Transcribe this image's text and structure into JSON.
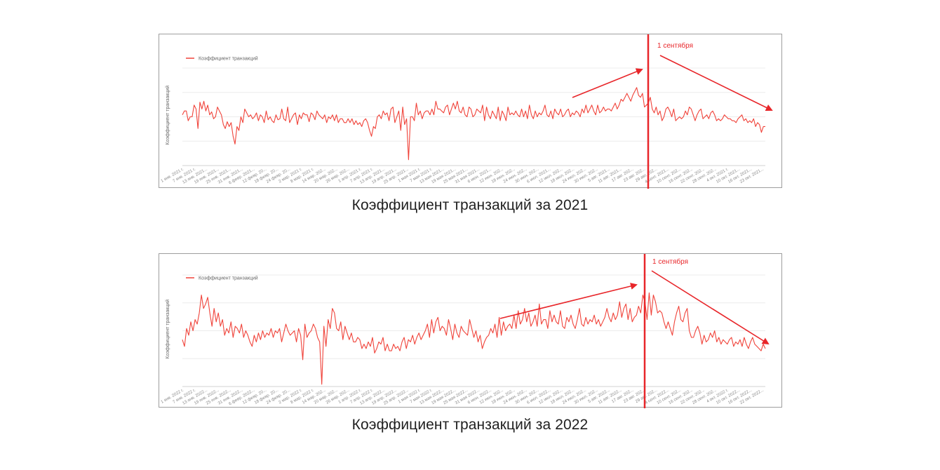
{
  "colors": {
    "series": "#f0433a",
    "annotation": "#e8262a",
    "axis": "#d0d0d0"
  },
  "chart_data": [
    {
      "type": "line",
      "caption": "Коэффициент транзакций за 2021",
      "ylabel": "Коэффициент транзакций",
      "legend": "Коэффициент транзакций",
      "annotation": "1 сентября",
      "grid": true,
      "x_ticks": [
        "1 янв. 2021 г.",
        "7 янв. 2021 г.",
        "13 янв. 2021...",
        "19 янв. 2021...",
        "25 янв. 2021...",
        "31 янв. 2021...",
        "6 февр. 2021...",
        "12 февр. 20...",
        "18 февр. 20...",
        "24 февр. 20...",
        "2 мар. 2021 г.",
        "8 мар. 2021 г.",
        "14 мар. 202...",
        "20 мар. 202...",
        "26 мар. 202...",
        "1 апр. 2021 г.",
        "7 апр. 2021 г.",
        "13 апр. 2021...",
        "19 апр. 2021...",
        "25 апр. 2021...",
        "1 мая 2021 г.",
        "7 мая 2021 г.",
        "13 мая 2021...",
        "19 мая 2021...",
        "25 мая 2021...",
        "31 мая 2021...",
        "6 июн. 2021...",
        "12 июн. 202...",
        "18 июн. 202...",
        "24 июн. 202...",
        "30 июн. 202...",
        "6 июл. 2021...",
        "12 июл. 202...",
        "18 июл. 202...",
        "24 июл. 202...",
        "30 июл. 202...",
        "5 авг. 2021...",
        "11 авг. 2021...",
        "17 авг. 202...",
        "23 авг. 202...",
        "29 авг. 202...",
        "4 сент. 2021...",
        "10 сент. 202...",
        "16 сент. 202...",
        "22 сент. 202...",
        "28 сент. 202...",
        "4 окт. 2021 г.",
        "10 окт. 2021...",
        "16 окт. 2021...",
        "23 окт. 2021..."
      ],
      "values": [
        52,
        56,
        56,
        46,
        50,
        50,
        62,
        58,
        38,
        65,
        58,
        66,
        56,
        62,
        52,
        55,
        48,
        50,
        60,
        56,
        52,
        42,
        38,
        45,
        40,
        44,
        30,
        22,
        40,
        36,
        50,
        44,
        58,
        54,
        50,
        52,
        48,
        50,
        54,
        46,
        52,
        50,
        44,
        56,
        47,
        50,
        46,
        44,
        52,
        47,
        48,
        58,
        48,
        46,
        60,
        44,
        48,
        52,
        54,
        42,
        52,
        48,
        54,
        52,
        52,
        45,
        54,
        52,
        47,
        56,
        52,
        50,
        48,
        52,
        44,
        50,
        48,
        52,
        46,
        52,
        44,
        48,
        48,
        44,
        44,
        48,
        44,
        48,
        42,
        46,
        42,
        44,
        40,
        46,
        48,
        44,
        36,
        30,
        40,
        38,
        50,
        52,
        48,
        56,
        52,
        54,
        46,
        58,
        60,
        44,
        50,
        56,
        36,
        60,
        42,
        48,
        6,
        50,
        50,
        46,
        64,
        52,
        56,
        48,
        54,
        56,
        56,
        52,
        58,
        52,
        66,
        58,
        58,
        56,
        54,
        60,
        62,
        52,
        58,
        64,
        58,
        66,
        56,
        54,
        60,
        52,
        50,
        60,
        58,
        50,
        52,
        58,
        56,
        54,
        62,
        46,
        60,
        52,
        48,
        56,
        52,
        48,
        60,
        46,
        56,
        52,
        46,
        60,
        52,
        54,
        52,
        56,
        52,
        50,
        58,
        50,
        56,
        48,
        62,
        52,
        48,
        56,
        50,
        54,
        52,
        56,
        62,
        52,
        50,
        56,
        48,
        58,
        54,
        52,
        58,
        50,
        52,
        56,
        58,
        50,
        54,
        52,
        56,
        54,
        50,
        58,
        54,
        62,
        54,
        58,
        62,
        56,
        52,
        62,
        54,
        56,
        60,
        56,
        58,
        58,
        56,
        60,
        64,
        58,
        62,
        68,
        66,
        70,
        74,
        70,
        66,
        72,
        76,
        80,
        72,
        70,
        74,
        60,
        62,
        64,
        70,
        58,
        54,
        60,
        52,
        56,
        46,
        50,
        58,
        60,
        56,
        50,
        58,
        46,
        48,
        50,
        48,
        50,
        56,
        52,
        60,
        58,
        52,
        46,
        52,
        56,
        58,
        48,
        50,
        52,
        48,
        54,
        56,
        52,
        46,
        48,
        46,
        48,
        52,
        50,
        48,
        48,
        46,
        46,
        44,
        48,
        50,
        52,
        46,
        48,
        44,
        46,
        44,
        48,
        40,
        44,
        42,
        34,
        40,
        40
      ],
      "xlim": [
        0,
        300
      ],
      "ylim": [
        0,
        100
      ]
    },
    {
      "type": "line",
      "caption": "Коэффициент транзакций за 2022",
      "ylabel": "Коэффициент транзакций",
      "legend": "Коэффициент транзакций",
      "annotation": "1 сентября",
      "grid": true,
      "x_ticks": [
        "1 янв. 2022 г.",
        "7 янв. 2022 г.",
        "13 янв. 2022...",
        "19 янв. 2022...",
        "25 янв. 2022...",
        "31 янв. 2022...",
        "6 февр. 2022...",
        "12 февр. 20...",
        "18 февр. 20...",
        "24 февр. 20...",
        "2 мар. 2022 г.",
        "8 мар. 2022 г.",
        "14 мар. 202...",
        "20 мар. 202...",
        "26 мар. 202...",
        "1 апр. 2022 г.",
        "7 апр. 2022 г.",
        "13 апр. 2022...",
        "19 апр. 2022...",
        "25 апр. 2022...",
        "1 мая 2022 г.",
        "7 мая 2022 г.",
        "13 мая 2022...",
        "19 мая 2022...",
        "25 мая 2022...",
        "31 мая 2022...",
        "6 июн. 2022...",
        "12 июн. 202...",
        "18 июн. 202...",
        "24 июн. 202...",
        "30 июн. 202...",
        "6 июл. 2022...",
        "12 июл. 202...",
        "18 июл. 202...",
        "24 июл. 202...",
        "30 июл. 202...",
        "5 авг. 2022...",
        "11 авг. 2022...",
        "17 авг. 202...",
        "23 авг. 202...",
        "29 авг. 202...",
        "4 сент. 2022...",
        "10 сент. 202...",
        "16 сент. 202...",
        "22 сент. 202...",
        "28 сент. 202...",
        "4 окт. 2022 г.",
        "10 окт. 2022...",
        "16 окт. 2022...",
        "22 окт. 2022..."
      ],
      "values": [
        42,
        36,
        52,
        46,
        58,
        50,
        60,
        56,
        66,
        82,
        70,
        74,
        80,
        66,
        54,
        70,
        58,
        66,
        54,
        60,
        46,
        52,
        48,
        58,
        44,
        54,
        52,
        48,
        56,
        44,
        50,
        46,
        40,
        36,
        46,
        40,
        48,
        42,
        50,
        44,
        48,
        46,
        52,
        44,
        50,
        48,
        52,
        40,
        48,
        56,
        50,
        46,
        48,
        50,
        40,
        52,
        46,
        24,
        56,
        44,
        48,
        50,
        56,
        52,
        44,
        40,
        2,
        54,
        36,
        60,
        52,
        70,
        66,
        52,
        50,
        58,
        42,
        54,
        48,
        42,
        48,
        40,
        40,
        44,
        42,
        34,
        38,
        34,
        40,
        36,
        44,
        30,
        34,
        40,
        38,
        44,
        32,
        38,
        32,
        32,
        38,
        34,
        36,
        32,
        40,
        44,
        34,
        42,
        40,
        46,
        38,
        44,
        48,
        42,
        46,
        50,
        56,
        44,
        60,
        48,
        58,
        62,
        50,
        54,
        52,
        46,
        60,
        52,
        42,
        56,
        48,
        44,
        54,
        50,
        48,
        46,
        60,
        52,
        44,
        50,
        40,
        46,
        34,
        40,
        44,
        46,
        52,
        48,
        56,
        44,
        62,
        46,
        58,
        50,
        54,
        56,
        52,
        64,
        52,
        68,
        56,
        60,
        70,
        58,
        66,
        54,
        58,
        64,
        54,
        74,
        56,
        60,
        60,
        52,
        68,
        58,
        64,
        58,
        56,
        68,
        54,
        52,
        62,
        58,
        64,
        56,
        52,
        60,
        70,
        56,
        54,
        62,
        56,
        60,
        58,
        64,
        56,
        60,
        54,
        58,
        62,
        70,
        62,
        58,
        66,
        60,
        64,
        76,
        62,
        70,
        74,
        60,
        70,
        58,
        62,
        64,
        72,
        66,
        82,
        76,
        60,
        84,
        64,
        82,
        76,
        66,
        68,
        66,
        58,
        52,
        58,
        52,
        46,
        58,
        66,
        72,
        60,
        58,
        66,
        70,
        50,
        44,
        44,
        50,
        54,
        48,
        38,
        46,
        40,
        42,
        48,
        44,
        50,
        40,
        44,
        38,
        42,
        40,
        38,
        42,
        44,
        36,
        40,
        38,
        42,
        36,
        44,
        38,
        34,
        40,
        44,
        38,
        36,
        34,
        32,
        38,
        34
      ],
      "xlim": [
        0,
        300
      ],
      "ylim": [
        0,
        100
      ]
    }
  ]
}
